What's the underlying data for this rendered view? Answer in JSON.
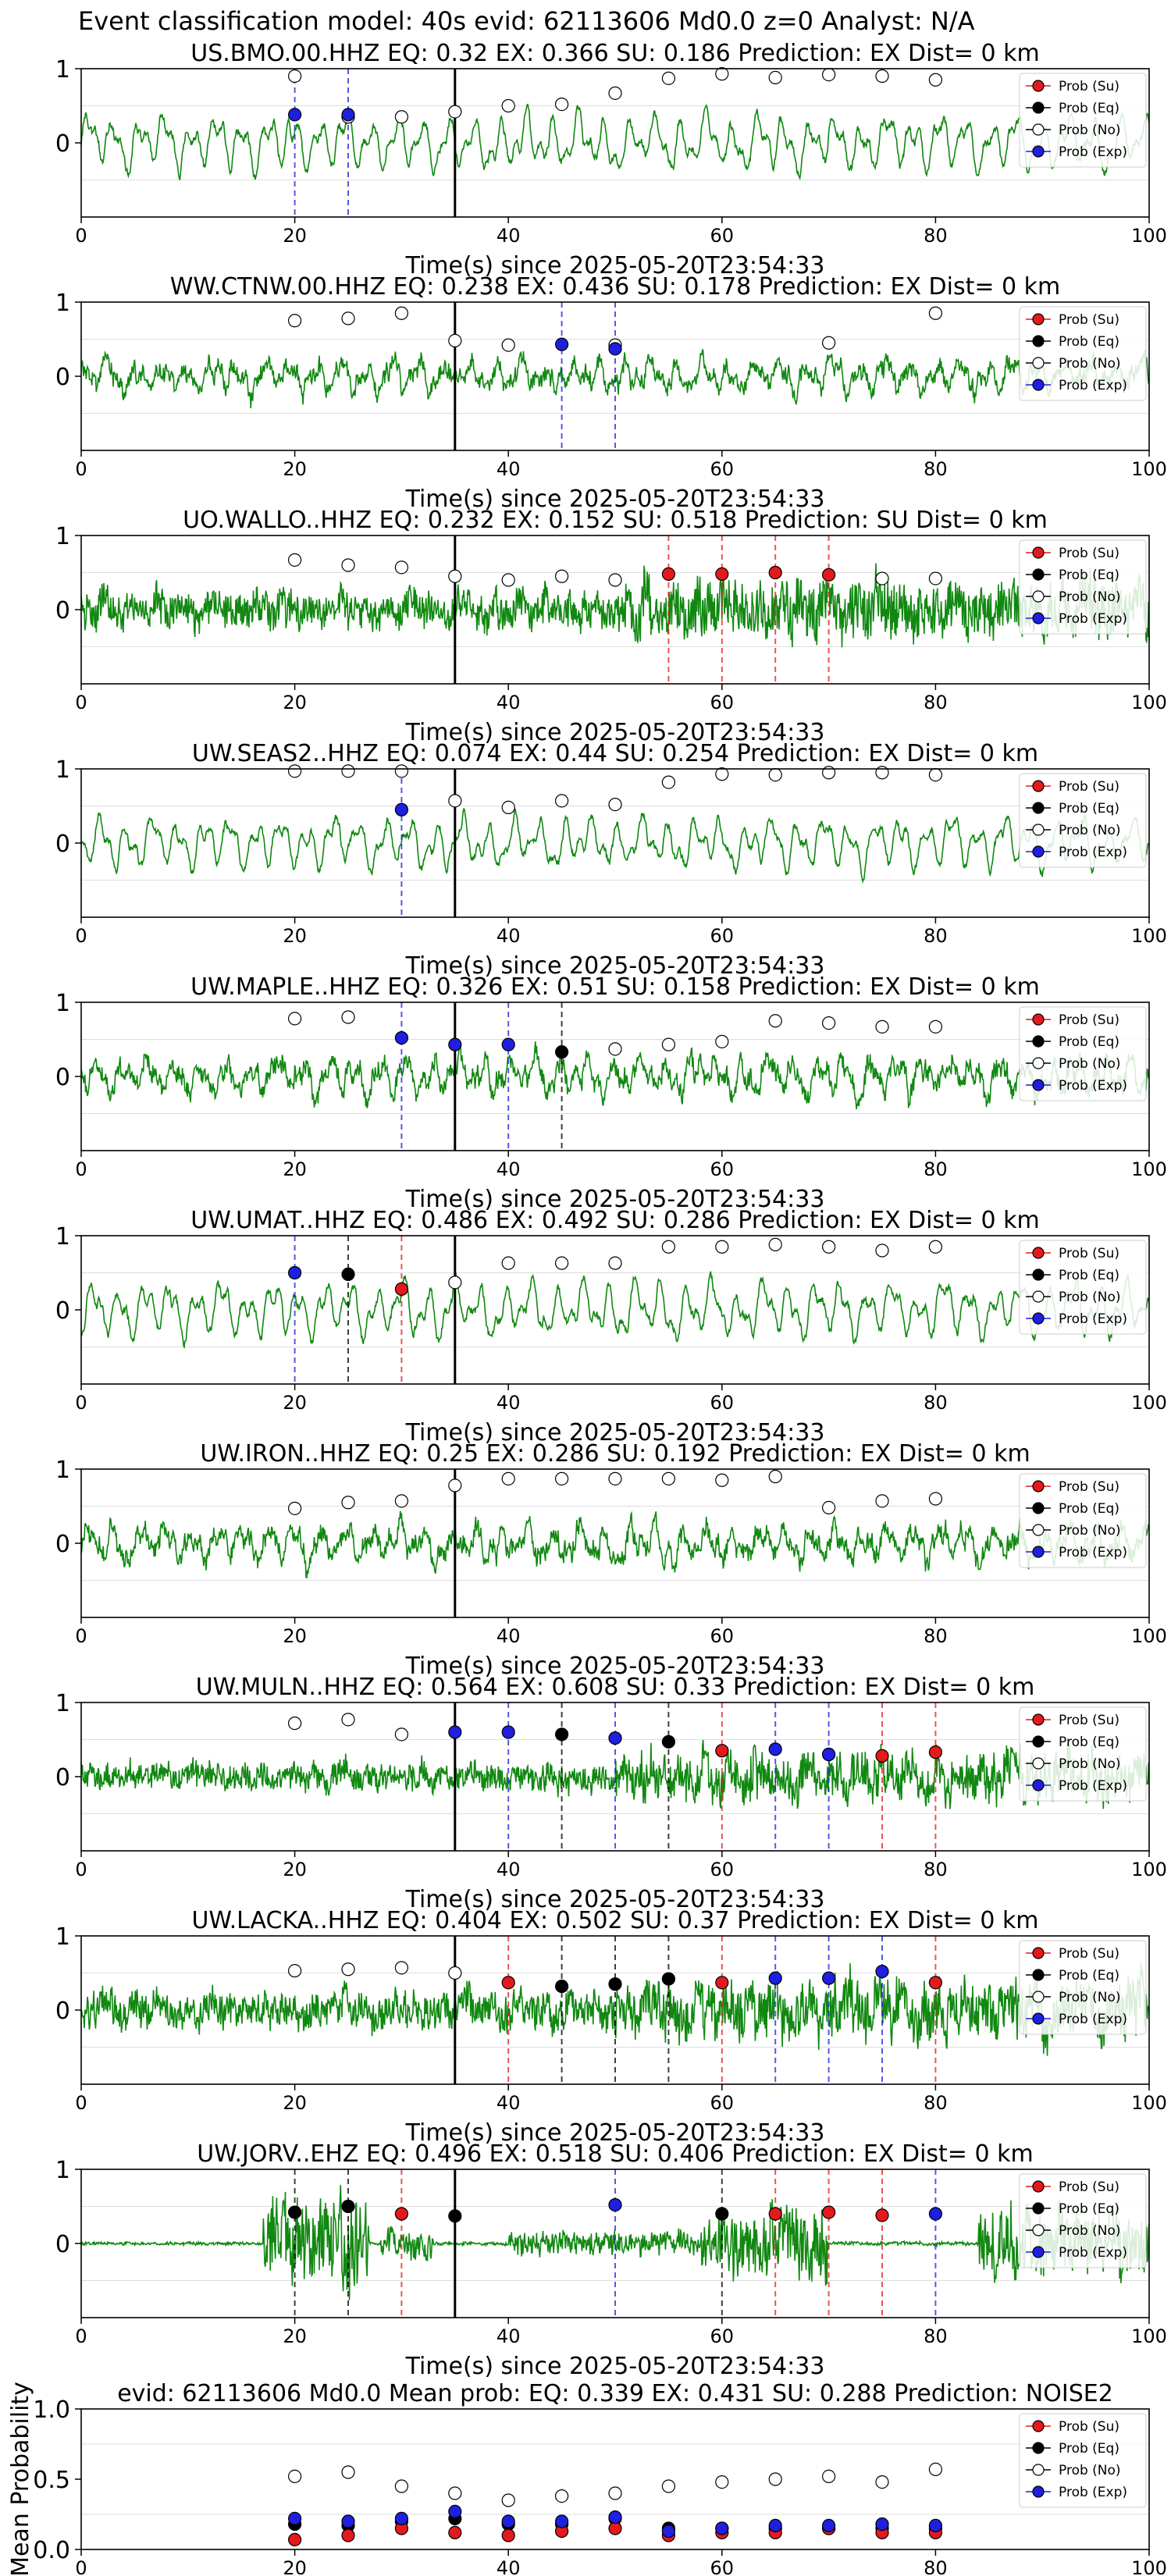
{
  "figure": {
    "title": "Event classification model: 40s evid: 62113606 Md0.0 z=0 Analyst: N/A"
  },
  "colors": {
    "su": "#e31a1c",
    "eq": "#000000",
    "no": "#ffffff",
    "exp": "#1f1fe0",
    "trace": "#118811",
    "axis": "#000000",
    "grid": "#dddddd"
  },
  "legend_labels": [
    "Prob (Su)",
    "Prob (Eq)",
    "Prob (No)",
    "Prob (Exp)"
  ],
  "chart_data": [
    {
      "type": "line",
      "title": "US.BMO.00.HHZ   EQ: 0.32  EX: 0.366  SU: 0.186   Prediction: EX    Dist= 0 km",
      "xlabel": "Time(s) since 2025-05-20T23:54:33",
      "ylabel": "",
      "xlim": [
        0,
        100
      ],
      "ylim": [
        -1,
        1
      ],
      "xticks": [
        0,
        20,
        40,
        60,
        80,
        100
      ],
      "yticks": [
        1,
        0
      ],
      "trace_style": "smooth",
      "trace_amp": 0.55,
      "p_time": 35,
      "legend_position": "right",
      "prob_no": [
        [
          20,
          0.9
        ],
        [
          25,
          0.35
        ],
        [
          30,
          0.35
        ],
        [
          35,
          0.42
        ],
        [
          40,
          0.5
        ],
        [
          45,
          0.52
        ],
        [
          50,
          0.67
        ],
        [
          55,
          0.87
        ],
        [
          60,
          0.93
        ],
        [
          65,
          0.88
        ],
        [
          70,
          0.92
        ],
        [
          75,
          0.9
        ],
        [
          80,
          0.85
        ]
      ],
      "prob_eq": [],
      "prob_su": [],
      "prob_exp": [
        [
          20,
          0.38
        ],
        [
          25,
          0.38
        ]
      ],
      "vlines": [
        {
          "x": 20,
          "cls": "exp"
        },
        {
          "x": 25,
          "cls": "exp"
        }
      ]
    },
    {
      "type": "line",
      "title": "WW.CTNW.00.HHZ   EQ: 0.238  EX: 0.436  SU: 0.178   Prediction: EX    Dist= 0 km",
      "xlabel": "Time(s) since 2025-05-20T23:54:33",
      "ylabel": "",
      "xlim": [
        0,
        100
      ],
      "ylim": [
        -1,
        1
      ],
      "xticks": [
        0,
        20,
        40,
        60,
        80,
        100
      ],
      "yticks": [
        1,
        0
      ],
      "trace_style": "mixed",
      "trace_amp": 0.45,
      "p_time": 35,
      "legend_position": "right",
      "prob_no": [
        [
          20,
          0.75
        ],
        [
          25,
          0.78
        ],
        [
          30,
          0.85
        ],
        [
          35,
          0.48
        ],
        [
          40,
          0.42
        ],
        [
          50,
          0.42
        ],
        [
          70,
          0.45
        ],
        [
          80,
          0.85
        ]
      ],
      "prob_eq": [],
      "prob_su": [],
      "prob_exp": [
        [
          45,
          0.43
        ],
        [
          50,
          0.37
        ]
      ],
      "vlines": [
        {
          "x": 45,
          "cls": "exp"
        },
        {
          "x": 50,
          "cls": "exp"
        }
      ]
    },
    {
      "type": "line",
      "title": "UO.WALLO..HHZ   EQ: 0.232  EX: 0.152  SU: 0.518   Prediction: SU    Dist= 0 km",
      "xlabel": "Time(s) since 2025-05-20T23:54:33",
      "ylabel": "",
      "xlim": [
        0,
        100
      ],
      "ylim": [
        -1,
        1
      ],
      "xticks": [
        0,
        20,
        40,
        60,
        80,
        100
      ],
      "yticks": [
        1,
        0
      ],
      "trace_style": "noisy",
      "trace_amp": 0.45,
      "p_time": 35,
      "legend_position": "right",
      "prob_no": [
        [
          20,
          0.67
        ],
        [
          25,
          0.6
        ],
        [
          30,
          0.57
        ],
        [
          35,
          0.45
        ],
        [
          40,
          0.4
        ],
        [
          45,
          0.45
        ],
        [
          50,
          0.4
        ],
        [
          75,
          0.42
        ],
        [
          80,
          0.42
        ]
      ],
      "prob_eq": [],
      "prob_su": [
        [
          55,
          0.48
        ],
        [
          60,
          0.48
        ],
        [
          65,
          0.5
        ],
        [
          70,
          0.47
        ]
      ],
      "prob_exp": [],
      "vlines": [
        {
          "x": 55,
          "cls": "su"
        },
        {
          "x": 60,
          "cls": "su"
        },
        {
          "x": 65,
          "cls": "su"
        },
        {
          "x": 70,
          "cls": "su"
        }
      ]
    },
    {
      "type": "line",
      "title": "UW.SEAS2..HHZ   EQ: 0.074  EX: 0.44  SU: 0.254   Prediction: EX    Dist= 0 km",
      "xlabel": "Time(s) since 2025-05-20T23:54:33",
      "ylabel": "",
      "xlim": [
        0,
        100
      ],
      "ylim": [
        -1,
        1
      ],
      "xticks": [
        0,
        20,
        40,
        60,
        80,
        100
      ],
      "yticks": [
        1,
        0
      ],
      "trace_style": "smooth",
      "trace_amp": 0.5,
      "p_time": 35,
      "legend_position": "right",
      "prob_no": [
        [
          20,
          0.97
        ],
        [
          25,
          0.97
        ],
        [
          30,
          0.97
        ],
        [
          35,
          0.57
        ],
        [
          40,
          0.48
        ],
        [
          45,
          0.57
        ],
        [
          50,
          0.52
        ],
        [
          55,
          0.82
        ],
        [
          60,
          0.93
        ],
        [
          65,
          0.92
        ],
        [
          70,
          0.95
        ],
        [
          75,
          0.95
        ],
        [
          80,
          0.92
        ]
      ],
      "prob_eq": [],
      "prob_su": [],
      "prob_exp": [
        [
          30,
          0.45
        ]
      ],
      "vlines": [
        {
          "x": 30,
          "cls": "exp"
        }
      ]
    },
    {
      "type": "line",
      "title": "UW.MAPLE..HHZ   EQ: 0.326  EX: 0.51  SU: 0.158   Prediction: EX    Dist= 0 km",
      "xlabel": "Time(s) since 2025-05-20T23:54:33",
      "ylabel": "",
      "xlim": [
        0,
        100
      ],
      "ylim": [
        -1,
        1
      ],
      "xticks": [
        0,
        20,
        40,
        60,
        80,
        100
      ],
      "yticks": [
        1,
        0
      ],
      "trace_style": "mixed",
      "trace_amp": 0.5,
      "p_time": 35,
      "legend_position": "right",
      "prob_no": [
        [
          20,
          0.78
        ],
        [
          25,
          0.8
        ],
        [
          50,
          0.37
        ],
        [
          55,
          0.43
        ],
        [
          60,
          0.47
        ],
        [
          65,
          0.75
        ],
        [
          70,
          0.72
        ],
        [
          75,
          0.67
        ],
        [
          80,
          0.67
        ]
      ],
      "prob_eq": [
        [
          45,
          0.33
        ]
      ],
      "prob_su": [],
      "prob_exp": [
        [
          30,
          0.52
        ],
        [
          35,
          0.43
        ],
        [
          40,
          0.43
        ]
      ],
      "vlines": [
        {
          "x": 30,
          "cls": "exp"
        },
        {
          "x": 40,
          "cls": "exp"
        },
        {
          "x": 45,
          "cls": "eq"
        }
      ]
    },
    {
      "type": "line",
      "title": "UW.UMAT..HHZ   EQ: 0.486  EX: 0.492  SU: 0.286   Prediction: EX    Dist= 0 km",
      "xlabel": "Time(s) since 2025-05-20T23:54:33",
      "ylabel": "",
      "xlim": [
        0,
        100
      ],
      "ylim": [
        -1,
        1
      ],
      "xticks": [
        0,
        20,
        40,
        60,
        80,
        100
      ],
      "yticks": [
        1,
        0
      ],
      "trace_style": "smooth",
      "trace_amp": 0.55,
      "p_time": 35,
      "legend_position": "right",
      "prob_no": [
        [
          35,
          0.37
        ],
        [
          40,
          0.63
        ],
        [
          45,
          0.63
        ],
        [
          50,
          0.63
        ],
        [
          55,
          0.85
        ],
        [
          60,
          0.85
        ],
        [
          65,
          0.88
        ],
        [
          70,
          0.85
        ],
        [
          75,
          0.8
        ],
        [
          80,
          0.85
        ]
      ],
      "prob_eq": [
        [
          25,
          0.48
        ]
      ],
      "prob_su": [
        [
          30,
          0.28
        ]
      ],
      "prob_exp": [
        [
          20,
          0.5
        ]
      ],
      "vlines": [
        {
          "x": 20,
          "cls": "exp"
        },
        {
          "x": 25,
          "cls": "eq"
        },
        {
          "x": 30,
          "cls": "su"
        }
      ]
    },
    {
      "type": "line",
      "title": "UW.IRON..HHZ   EQ: 0.25  EX: 0.286  SU: 0.192   Prediction: EX    Dist= 0 km",
      "xlabel": "Time(s) since 2025-05-20T23:54:33",
      "ylabel": "",
      "xlim": [
        0,
        100
      ],
      "ylim": [
        -1,
        1
      ],
      "xticks": [
        0,
        20,
        40,
        60,
        80,
        100
      ],
      "yticks": [
        1,
        0
      ],
      "trace_style": "mixed",
      "trace_amp": 0.5,
      "p_time": 35,
      "legend_position": "right",
      "prob_no": [
        [
          20,
          0.47
        ],
        [
          25,
          0.55
        ],
        [
          30,
          0.57
        ],
        [
          35,
          0.78
        ],
        [
          40,
          0.87
        ],
        [
          45,
          0.87
        ],
        [
          50,
          0.87
        ],
        [
          55,
          0.87
        ],
        [
          60,
          0.85
        ],
        [
          65,
          0.9
        ],
        [
          70,
          0.48
        ],
        [
          75,
          0.57
        ],
        [
          80,
          0.6
        ]
      ],
      "prob_eq": [],
      "prob_su": [],
      "prob_exp": [],
      "vlines": []
    },
    {
      "type": "line",
      "title": "UW.MULN..HHZ   EQ: 0.564  EX: 0.608  SU: 0.33   Prediction: EX    Dist= 0 km",
      "xlabel": "Time(s) since 2025-05-20T23:54:33",
      "ylabel": "",
      "xlim": [
        0,
        100
      ],
      "ylim": [
        -1,
        1
      ],
      "xticks": [
        0,
        20,
        40,
        60,
        80,
        100
      ],
      "yticks": [
        1,
        0
      ],
      "trace_style": "noisy",
      "trace_amp": 0.35,
      "p_time": 35,
      "legend_position": "right",
      "prob_no": [
        [
          20,
          0.72
        ],
        [
          25,
          0.77
        ],
        [
          30,
          0.57
        ],
        [
          70,
          0.3
        ]
      ],
      "prob_eq": [
        [
          45,
          0.57
        ],
        [
          55,
          0.47
        ]
      ],
      "prob_su": [
        [
          60,
          0.35
        ],
        [
          75,
          0.28
        ],
        [
          80,
          0.33
        ]
      ],
      "prob_exp": [
        [
          35,
          0.6
        ],
        [
          40,
          0.6
        ],
        [
          50,
          0.52
        ],
        [
          65,
          0.37
        ],
        [
          70,
          0.3
        ]
      ],
      "vlines": [
        {
          "x": 40,
          "cls": "exp"
        },
        {
          "x": 45,
          "cls": "eq"
        },
        {
          "x": 50,
          "cls": "exp"
        },
        {
          "x": 55,
          "cls": "eq"
        },
        {
          "x": 60,
          "cls": "su"
        },
        {
          "x": 65,
          "cls": "exp"
        },
        {
          "x": 70,
          "cls": "exp"
        },
        {
          "x": 75,
          "cls": "su"
        },
        {
          "x": 80,
          "cls": "su"
        }
      ]
    },
    {
      "type": "line",
      "title": "UW.LACKA..HHZ   EQ: 0.404  EX: 0.502  SU: 0.37   Prediction: EX    Dist= 0 km",
      "xlabel": "Time(s) since 2025-05-20T23:54:33",
      "ylabel": "",
      "xlim": [
        0,
        100
      ],
      "ylim": [
        -1,
        1
      ],
      "xticks": [
        0,
        20,
        40,
        60,
        80,
        100
      ],
      "yticks": [
        1,
        0
      ],
      "trace_style": "noisy",
      "trace_amp": 0.45,
      "p_time": 35,
      "legend_position": "right",
      "prob_no": [
        [
          20,
          0.53
        ],
        [
          25,
          0.55
        ],
        [
          30,
          0.57
        ],
        [
          35,
          0.5
        ]
      ],
      "prob_eq": [
        [
          45,
          0.32
        ],
        [
          50,
          0.35
        ],
        [
          55,
          0.42
        ]
      ],
      "prob_su": [
        [
          40,
          0.37
        ],
        [
          60,
          0.37
        ],
        [
          80,
          0.37
        ]
      ],
      "prob_exp": [
        [
          65,
          0.43
        ],
        [
          70,
          0.43
        ],
        [
          75,
          0.52
        ]
      ],
      "vlines": [
        {
          "x": 40,
          "cls": "su"
        },
        {
          "x": 45,
          "cls": "eq"
        },
        {
          "x": 50,
          "cls": "eq"
        },
        {
          "x": 55,
          "cls": "eq"
        },
        {
          "x": 60,
          "cls": "su"
        },
        {
          "x": 65,
          "cls": "exp"
        },
        {
          "x": 70,
          "cls": "exp"
        },
        {
          "x": 75,
          "cls": "exp"
        },
        {
          "x": 80,
          "cls": "su"
        }
      ]
    },
    {
      "type": "line",
      "title": "UW.JORV..EHZ   EQ: 0.496  EX: 0.518  SU: 0.406   Prediction: EX    Dist= 0 km",
      "xlabel": "Time(s) since 2025-05-20T23:54:33",
      "ylabel": "",
      "xlim": [
        0,
        100
      ],
      "ylim": [
        -1,
        1
      ],
      "xticks": [
        0,
        20,
        40,
        60,
        80,
        100
      ],
      "yticks": [
        1,
        0
      ],
      "trace_style": "burst",
      "trace_amp": 0.6,
      "p_time": 35,
      "legend_position": "right",
      "prob_no": [],
      "prob_eq": [
        [
          20,
          0.42
        ],
        [
          25,
          0.5
        ],
        [
          35,
          0.37
        ],
        [
          60,
          0.4
        ]
      ],
      "prob_su": [
        [
          30,
          0.4
        ],
        [
          65,
          0.4
        ],
        [
          70,
          0.42
        ],
        [
          75,
          0.38
        ]
      ],
      "prob_exp": [
        [
          50,
          0.52
        ],
        [
          80,
          0.4
        ]
      ],
      "vlines": [
        {
          "x": 20,
          "cls": "eq"
        },
        {
          "x": 25,
          "cls": "eq"
        },
        {
          "x": 30,
          "cls": "su"
        },
        {
          "x": 50,
          "cls": "exp"
        },
        {
          "x": 60,
          "cls": "eq"
        },
        {
          "x": 65,
          "cls": "su"
        },
        {
          "x": 70,
          "cls": "su"
        },
        {
          "x": 75,
          "cls": "su"
        },
        {
          "x": 80,
          "cls": "exp"
        }
      ]
    },
    {
      "type": "scatter",
      "title": "evid: 62113606  Md0.0   Mean prob:   EQ: 0.339  EX: 0.431  SU: 0.288   Prediction: NOISE2",
      "xlabel": "",
      "ylabel": "Mean Probability",
      "xlim": [
        0,
        100
      ],
      "ylim": [
        0,
        1
      ],
      "xticks": [
        0,
        20,
        40,
        60,
        80,
        100
      ],
      "yticks": [
        0.0,
        0.5,
        1.0
      ],
      "ytick_labels": [
        "0.0",
        "0.5",
        "1.0"
      ],
      "trace_style": "none",
      "p_time": null,
      "legend_position": "right",
      "prob_no": [
        [
          20,
          0.52
        ],
        [
          25,
          0.55
        ],
        [
          30,
          0.45
        ],
        [
          35,
          0.4
        ],
        [
          40,
          0.35
        ],
        [
          45,
          0.38
        ],
        [
          50,
          0.4
        ],
        [
          55,
          0.45
        ],
        [
          60,
          0.48
        ],
        [
          65,
          0.5
        ],
        [
          70,
          0.52
        ],
        [
          75,
          0.48
        ],
        [
          80,
          0.57
        ]
      ],
      "prob_eq": [
        [
          20,
          0.18
        ],
        [
          25,
          0.17
        ],
        [
          30,
          0.2
        ],
        [
          35,
          0.22
        ],
        [
          40,
          0.18
        ],
        [
          45,
          0.18
        ],
        [
          50,
          0.22
        ],
        [
          55,
          0.15
        ],
        [
          60,
          0.15
        ],
        [
          65,
          0.15
        ],
        [
          70,
          0.15
        ],
        [
          75,
          0.15
        ],
        [
          80,
          0.15
        ]
      ],
      "prob_su": [
        [
          20,
          0.07
        ],
        [
          25,
          0.1
        ],
        [
          30,
          0.15
        ],
        [
          35,
          0.12
        ],
        [
          40,
          0.1
        ],
        [
          45,
          0.13
        ],
        [
          50,
          0.15
        ],
        [
          55,
          0.1
        ],
        [
          60,
          0.12
        ],
        [
          65,
          0.12
        ],
        [
          70,
          0.15
        ],
        [
          75,
          0.12
        ],
        [
          80,
          0.12
        ]
      ],
      "prob_exp": [
        [
          20,
          0.22
        ],
        [
          25,
          0.2
        ],
        [
          30,
          0.22
        ],
        [
          35,
          0.27
        ],
        [
          40,
          0.2
        ],
        [
          45,
          0.2
        ],
        [
          50,
          0.23
        ],
        [
          55,
          0.13
        ],
        [
          60,
          0.15
        ],
        [
          65,
          0.17
        ],
        [
          70,
          0.17
        ],
        [
          75,
          0.18
        ],
        [
          80,
          0.17
        ]
      ],
      "vlines": []
    }
  ]
}
